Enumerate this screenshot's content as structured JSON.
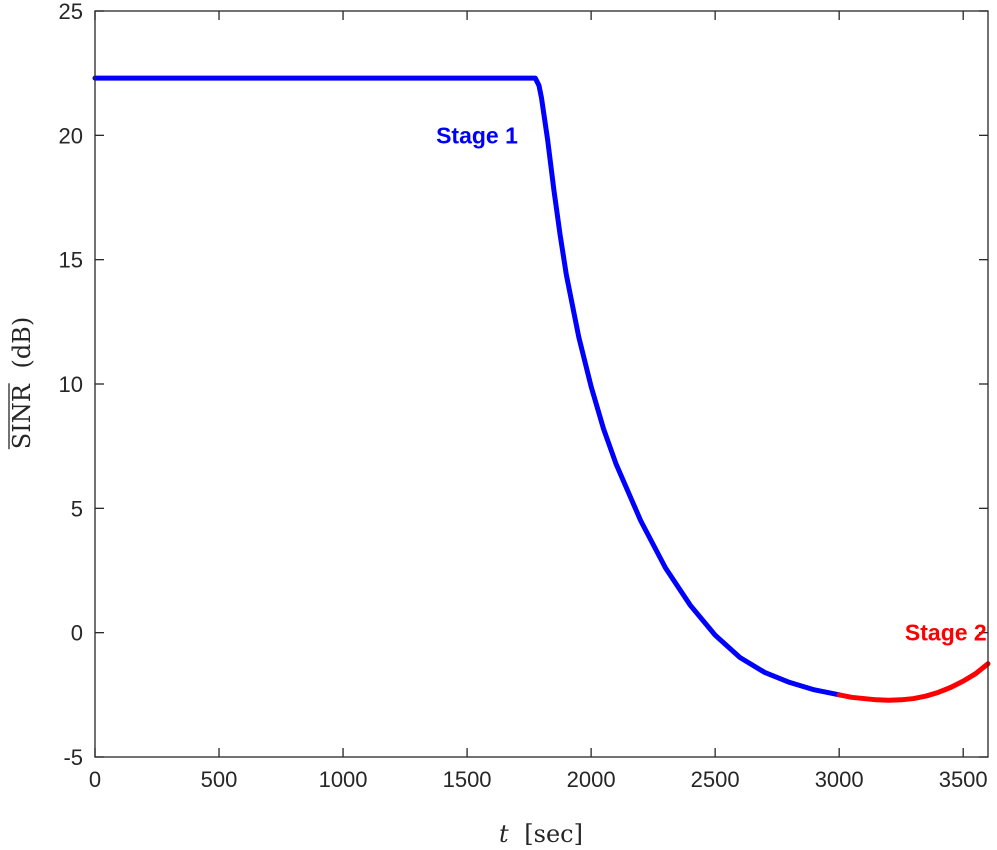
{
  "chart_data": {
    "type": "line",
    "xlabel_var": "t",
    "xlabel_unit": "[sec]",
    "ylabel_main": "SINR",
    "ylabel_unit": "(dB)",
    "xlim": [
      0,
      3600
    ],
    "ylim": [
      -5,
      25
    ],
    "xticks": [
      0,
      500,
      1000,
      1500,
      2000,
      2500,
      3000,
      3500
    ],
    "yticks": [
      -5,
      0,
      5,
      10,
      15,
      20,
      25
    ],
    "grid": false,
    "series": [
      {
        "color": "#0000ff",
        "x": [
          0,
          500,
          1000,
          1500,
          1760,
          1775,
          1790,
          1800,
          1825,
          1850,
          1875,
          1900,
          1950,
          2000,
          2050,
          2100,
          2200,
          2300,
          2400,
          2500,
          2600,
          2700,
          2800,
          2900,
          3000
        ],
        "y": [
          22.3,
          22.3,
          22.3,
          22.3,
          22.3,
          22.3,
          22.0,
          21.5,
          19.8,
          17.8,
          16.0,
          14.4,
          11.9,
          9.9,
          8.2,
          6.8,
          4.5,
          2.6,
          1.1,
          -0.1,
          -1.0,
          -1.6,
          -2.0,
          -2.3,
          -2.5
        ]
      },
      {
        "color": "#ff0000",
        "x": [
          3000,
          3050,
          3100,
          3150,
          3200,
          3250,
          3300,
          3350,
          3400,
          3450,
          3500,
          3550,
          3600
        ],
        "y": [
          -2.5,
          -2.6,
          -2.65,
          -2.7,
          -2.72,
          -2.7,
          -2.65,
          -2.55,
          -2.4,
          -2.2,
          -1.95,
          -1.65,
          -1.25
        ]
      }
    ],
    "annotations": [
      {
        "text": "Stage 1",
        "x": 1540,
        "y": 20,
        "color": "#0000ff"
      },
      {
        "text": "Stage 2",
        "x": 3430,
        "y": 0,
        "color": "#ff0000"
      }
    ]
  }
}
